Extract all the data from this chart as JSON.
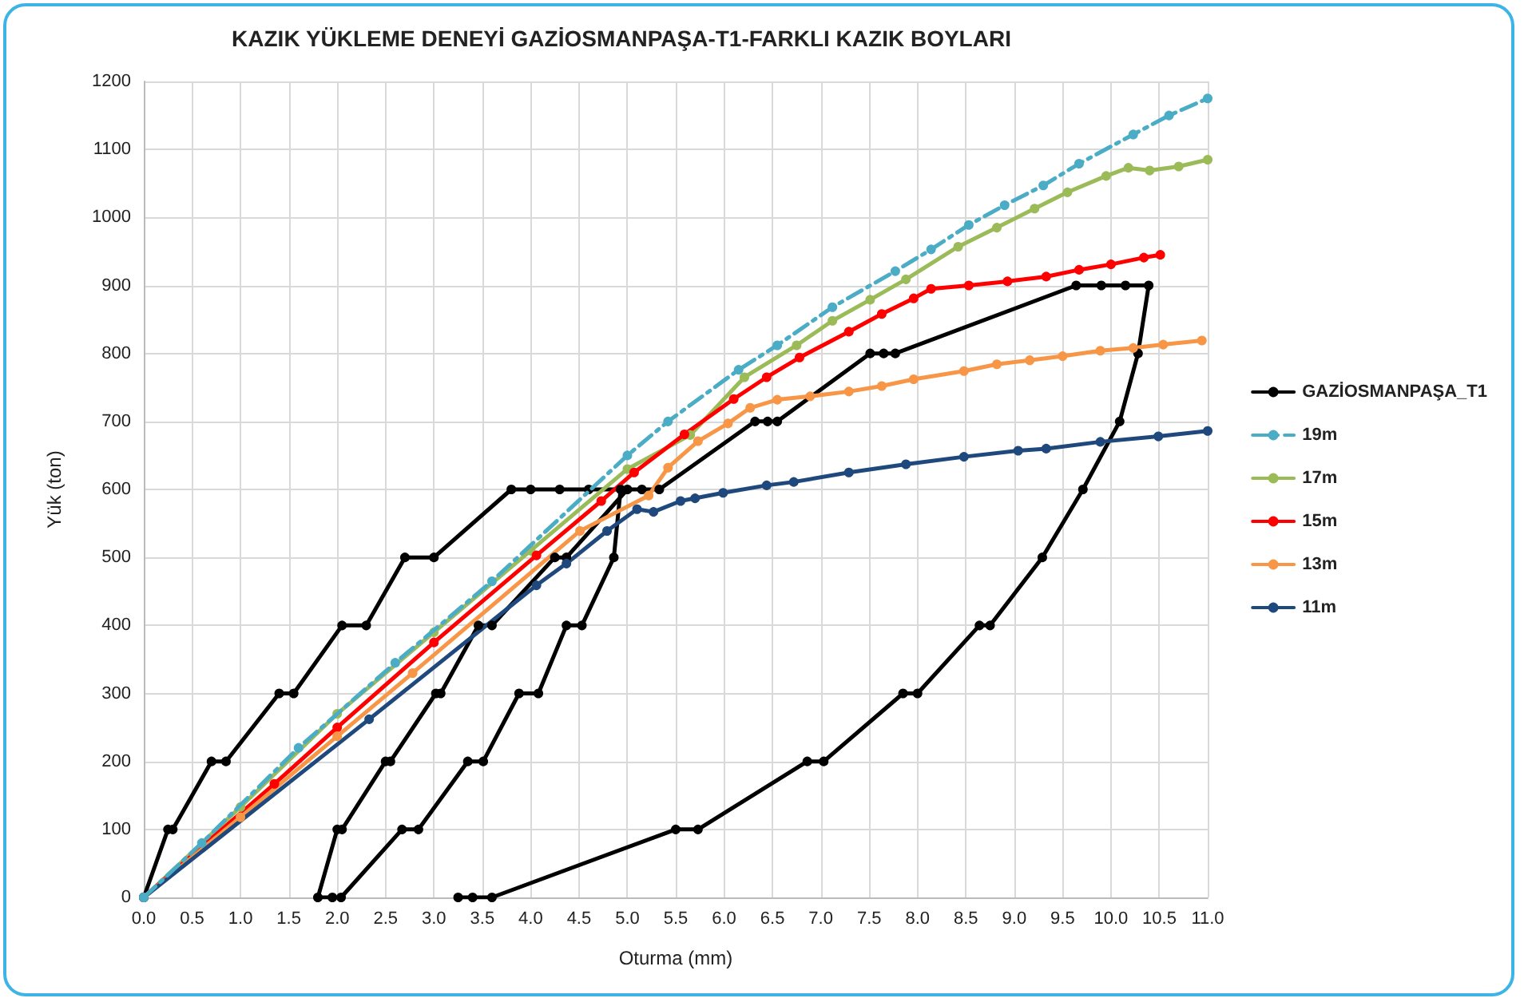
{
  "chart_data": {
    "type": "line",
    "title": "KAZIK YÜKLEME DENEYİ GAZİOSMANPAŞA-T1-FARKLI KAZIK BOYLARI",
    "xlabel": "Oturma (mm)",
    "ylabel": "Yük (ton)",
    "xlim": [
      0,
      11
    ],
    "ylim": [
      0,
      1200
    ],
    "xticks": [
      {
        "value": 0,
        "label": "0.0"
      },
      0.5,
      {
        "value": 1,
        "label": "1.0"
      },
      1.5,
      {
        "value": 2,
        "label": "2.0"
      },
      2.5,
      {
        "value": 3,
        "label": "3.0"
      },
      3.5,
      {
        "value": 4,
        "label": "4.0"
      },
      4.5,
      {
        "value": 5,
        "label": "5.0"
      },
      5.5,
      {
        "value": 6,
        "label": "6.0"
      },
      6.5,
      {
        "value": 7,
        "label": "7.0"
      },
      7.5,
      {
        "value": 8,
        "label": "8.0"
      },
      8.5,
      {
        "value": 9,
        "label": "9.0"
      },
      9.5,
      {
        "value": 10,
        "label": "10.0"
      },
      10.5,
      {
        "value": 11,
        "label": "11.0"
      }
    ],
    "yticks": [
      0,
      100,
      200,
      300,
      400,
      500,
      600,
      700,
      800,
      900,
      1000,
      1100,
      1200
    ],
    "grid": true,
    "legend": "right",
    "marker": "circle",
    "line_style": "solid",
    "series": [
      {
        "name": "GAZİOSMANPAŞA_T1",
        "color": "#000000",
        "x": [
          0,
          0.25,
          0.3,
          0.7,
          0.85,
          1.4,
          1.55,
          2.05,
          2.3,
          2.7,
          3.0,
          3.8,
          4.0,
          4.3,
          4.6,
          4.93,
          4.86,
          4.53,
          4.37,
          4.08,
          3.88,
          3.51,
          3.35,
          2.84,
          2.67,
          2.04,
          1.95,
          1.8,
          2.0,
          2.05,
          2.5,
          2.55,
          3.02,
          3.07,
          3.46,
          3.6,
          4.25,
          4.37,
          5.0,
          5.15,
          5.33,
          6.32,
          6.45,
          6.55,
          7.51,
          7.65,
          7.77,
          9.64,
          9.9,
          10.15,
          10.39,
          10.28,
          10.09,
          9.71,
          9.29,
          8.75,
          8.64,
          8.0,
          7.85,
          7.03,
          6.86,
          5.73,
          5.5,
          3.6,
          3.4,
          3.25
        ],
        "values": [
          0,
          100,
          100,
          200,
          200,
          300,
          300,
          400,
          400,
          500,
          500,
          600,
          600,
          600,
          600,
          600,
          500,
          400,
          400,
          300,
          300,
          200,
          200,
          100,
          100,
          0,
          0,
          0,
          100,
          100,
          200,
          200,
          300,
          300,
          400,
          400,
          500,
          500,
          600,
          600,
          600,
          700,
          700,
          700,
          800,
          800,
          800,
          900,
          900,
          900,
          900,
          800,
          700,
          600,
          500,
          400,
          400,
          300,
          300,
          200,
          200,
          100,
          100,
          0,
          0,
          0
        ]
      },
      {
        "name": "19m",
        "color": "#4bacc6",
        "line_style": "dashed",
        "x": [
          0,
          0.6,
          1.6,
          2.6,
          3.6,
          5,
          5.42,
          6.15,
          6.55,
          7.12,
          7.77,
          8.14,
          8.53,
          8.9,
          9.3,
          9.67,
          10.23,
          10.6,
          11.0
        ],
        "values": [
          0,
          80,
          220,
          345,
          465,
          650,
          700,
          776,
          812,
          868,
          921,
          953,
          989,
          1018,
          1047,
          1079,
          1122,
          1150,
          1175
        ]
      },
      {
        "name": "17m",
        "color": "#9bbb59",
        "x": [
          0,
          1,
          2,
          3,
          4,
          5,
          5.65,
          6.21,
          6.75,
          7.12,
          7.51,
          7.88,
          8.42,
          8.82,
          9.21,
          9.55,
          9.95,
          10.18,
          10.4,
          10.7,
          11.0
        ],
        "values": [
          0,
          133,
          270,
          390,
          510,
          630,
          680,
          765,
          812,
          848,
          879,
          909,
          957,
          985,
          1013,
          1037,
          1061,
          1073,
          1069,
          1075,
          1085
        ]
      },
      {
        "name": "15m",
        "color": "#ff0000",
        "x": [
          0,
          1.35,
          2,
          3,
          4.06,
          4.73,
          5.07,
          5.59,
          6.1,
          6.44,
          6.78,
          7.29,
          7.63,
          7.96,
          8.14,
          8.53,
          8.93,
          9.33,
          9.67,
          10.0,
          10.34,
          10.51
        ],
        "values": [
          0,
          167,
          250,
          375,
          503,
          583,
          625,
          681,
          733,
          765,
          794,
          832,
          858,
          881,
          895,
          900,
          906,
          913,
          923,
          931,
          941,
          945
        ]
      },
      {
        "name": "13m",
        "color": "#f79646",
        "x": [
          0,
          1,
          2,
          2.78,
          4.51,
          5.22,
          5.42,
          5.73,
          6.04,
          6.27,
          6.55,
          6.89,
          7.29,
          7.63,
          7.96,
          8.48,
          8.82,
          9.16,
          9.5,
          9.89,
          10.23,
          10.54,
          10.94
        ],
        "values": [
          0,
          118,
          237,
          330,
          539,
          591,
          632,
          671,
          697,
          720,
          732,
          737,
          744,
          752,
          762,
          774,
          784,
          790,
          796,
          804,
          808,
          813,
          819
        ]
      },
      {
        "name": "11m",
        "color": "#1f497d",
        "x": [
          0,
          2.33,
          4.06,
          4.37,
          4.79,
          5.1,
          5.27,
          5.55,
          5.7,
          5.99,
          6.44,
          6.72,
          7.29,
          7.88,
          8.48,
          9.04,
          9.33,
          9.89,
          10.49,
          11.0
        ],
        "values": [
          0,
          262,
          459,
          491,
          539,
          571,
          567,
          583,
          587,
          595,
          606,
          611,
          625,
          637,
          648,
          657,
          660,
          670,
          678,
          686
        ]
      }
    ]
  }
}
